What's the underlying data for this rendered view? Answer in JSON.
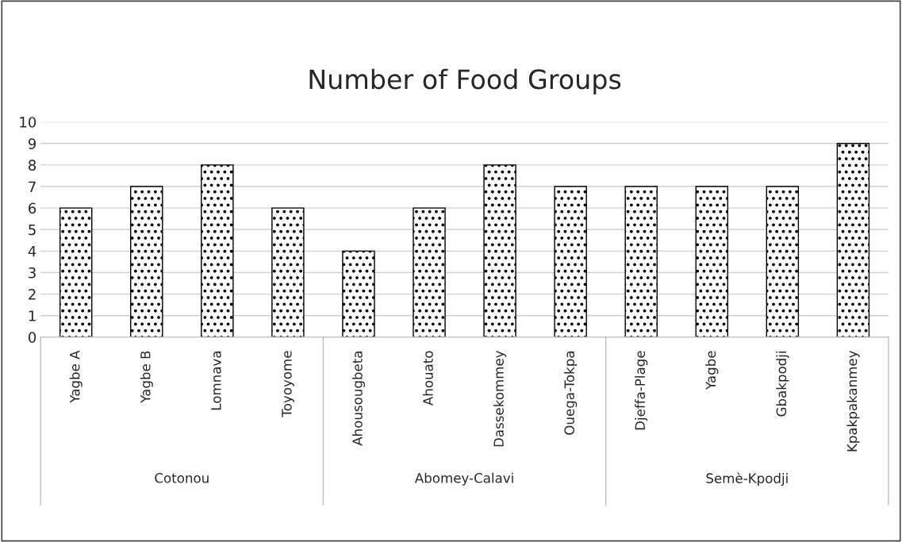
{
  "chart_data": {
    "type": "bar",
    "title": "Number of Food Groups",
    "categories": [
      "Yagbe A",
      "Yagbe B",
      "Lomnava",
      "Toyoyome",
      "Ahousougbeta",
      "Ahouato",
      "Dassekommey",
      "Ouega-Tokpa",
      "Djeffa-Plage",
      "Yagbe",
      "Gbakpodji",
      "Kpakpakanmey"
    ],
    "values": [
      6,
      7,
      8,
      6,
      4,
      6,
      8,
      7,
      7,
      7,
      7,
      9
    ],
    "color": "#000000",
    "ylim": [
      0,
      10
    ],
    "yticks": [
      0,
      1,
      2,
      3,
      4,
      5,
      6,
      7,
      8,
      9,
      10
    ],
    "grid": "y",
    "annotations": [
      "Cotonou",
      "Abomey-Calavi",
      "Semè-Kpodji"
    ]
  }
}
